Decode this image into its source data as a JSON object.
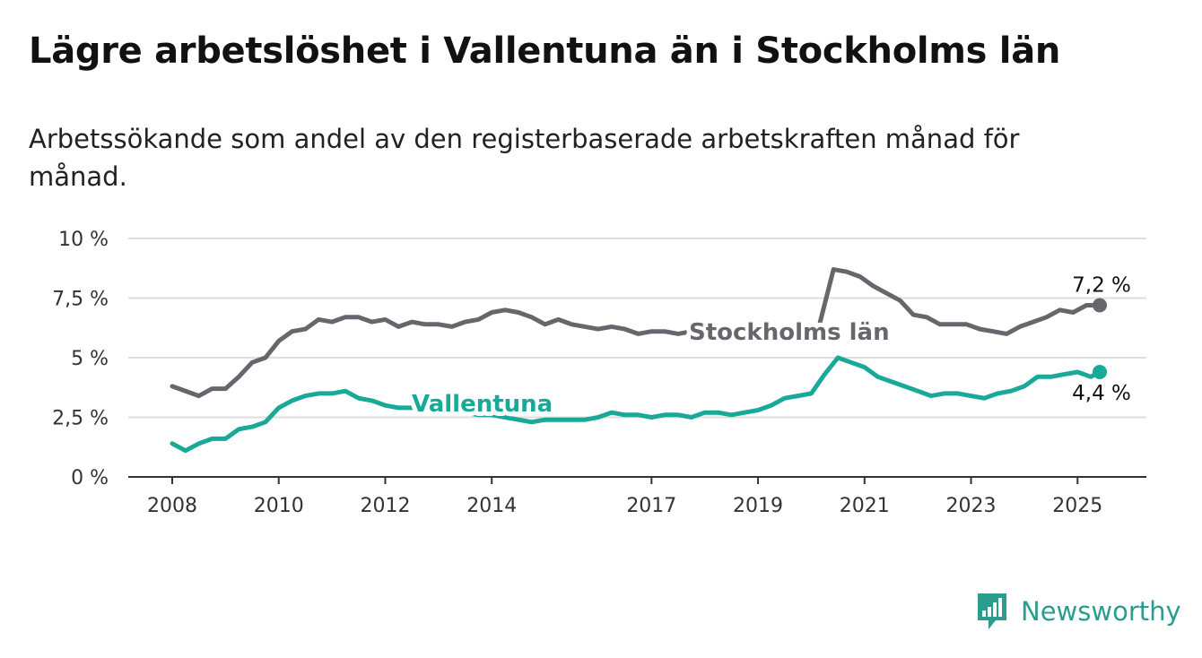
{
  "title": "Lägre arbetslöshet i Vallentuna än i Stockholms län",
  "subtitle": "Arbetssökande som andel av den registerbaserade arbetskraften månad för månad.",
  "brand": {
    "name": "Newsworthy",
    "icon": "bar-chart-logo-icon",
    "color": "#2a9d8f"
  },
  "chart_data": {
    "type": "line",
    "x_start": "2008-01",
    "x_end": "2025-06",
    "y_ticks": [
      {
        "value": 0,
        "label": "0 %"
      },
      {
        "value": 2.5,
        "label": "2,5 %"
      },
      {
        "value": 5,
        "label": "5 %"
      },
      {
        "value": 7.5,
        "label": "7,5 %"
      },
      {
        "value": 10,
        "label": "10 %"
      }
    ],
    "x_ticks": [
      {
        "year": 2008,
        "label": "2008"
      },
      {
        "year": 2010,
        "label": "2010"
      },
      {
        "year": 2012,
        "label": "2012"
      },
      {
        "year": 2014,
        "label": "2014"
      },
      {
        "year": 2017,
        "label": "2017"
      },
      {
        "year": 2019,
        "label": "2019"
      },
      {
        "year": 2021,
        "label": "2021"
      },
      {
        "year": 2023,
        "label": "2023"
      },
      {
        "year": 2025,
        "label": "2025"
      }
    ],
    "ylim": [
      0,
      10
    ],
    "grid": true,
    "series": [
      {
        "name": "Stockholms län",
        "color": "#66676c",
        "end_label": "7,2 %",
        "points": [
          [
            "2008-01",
            3.8
          ],
          [
            "2008-07",
            3.4
          ],
          [
            "2008-10",
            3.7
          ],
          [
            "2009-01",
            3.7
          ],
          [
            "2009-04",
            4.2
          ],
          [
            "2009-07",
            4.8
          ],
          [
            "2009-10",
            5.0
          ],
          [
            "2010-01",
            5.7
          ],
          [
            "2010-04",
            6.1
          ],
          [
            "2010-07",
            6.2
          ],
          [
            "2010-10",
            6.6
          ],
          [
            "2011-01",
            6.5
          ],
          [
            "2011-04",
            6.7
          ],
          [
            "2011-07",
            6.7
          ],
          [
            "2011-10",
            6.5
          ],
          [
            "2012-01",
            6.6
          ],
          [
            "2012-04",
            6.3
          ],
          [
            "2012-07",
            6.5
          ],
          [
            "2012-10",
            6.4
          ],
          [
            "2013-01",
            6.4
          ],
          [
            "2013-04",
            6.3
          ],
          [
            "2013-07",
            6.5
          ],
          [
            "2013-10",
            6.6
          ],
          [
            "2014-01",
            6.9
          ],
          [
            "2014-04",
            7.0
          ],
          [
            "2014-07",
            6.9
          ],
          [
            "2014-10",
            6.7
          ],
          [
            "2015-01",
            6.4
          ],
          [
            "2015-04",
            6.6
          ],
          [
            "2015-07",
            6.4
          ],
          [
            "2015-10",
            6.3
          ],
          [
            "2016-01",
            6.2
          ],
          [
            "2016-04",
            6.3
          ],
          [
            "2016-07",
            6.2
          ],
          [
            "2016-10",
            6.0
          ],
          [
            "2017-01",
            6.1
          ],
          [
            "2017-04",
            6.1
          ],
          [
            "2017-07",
            6.0
          ],
          [
            "2017-10",
            6.1
          ],
          [
            "2017-12",
            6.1
          ],
          [
            "2020-03",
            6.5
          ],
          [
            "2020-06",
            8.7
          ],
          [
            "2020-09",
            8.6
          ],
          [
            "2020-12",
            8.4
          ],
          [
            "2021-03",
            8.0
          ],
          [
            "2021-06",
            7.7
          ],
          [
            "2021-09",
            7.4
          ],
          [
            "2021-12",
            6.8
          ],
          [
            "2022-03",
            6.7
          ],
          [
            "2022-06",
            6.4
          ],
          [
            "2022-09",
            6.4
          ],
          [
            "2022-12",
            6.4
          ],
          [
            "2023-03",
            6.2
          ],
          [
            "2023-06",
            6.1
          ],
          [
            "2023-09",
            6.0
          ],
          [
            "2023-12",
            6.3
          ],
          [
            "2024-03",
            6.5
          ],
          [
            "2024-06",
            6.7
          ],
          [
            "2024-09",
            7.0
          ],
          [
            "2024-12",
            6.9
          ],
          [
            "2025-03",
            7.2
          ],
          [
            "2025-06",
            7.2
          ]
        ]
      },
      {
        "name": "Vallentuna",
        "color": "#1aa898",
        "end_label": "4,4 %",
        "points": [
          [
            "2008-01",
            1.4
          ],
          [
            "2008-04",
            1.1
          ],
          [
            "2008-07",
            1.4
          ],
          [
            "2008-10",
            1.6
          ],
          [
            "2009-01",
            1.6
          ],
          [
            "2009-04",
            2.0
          ],
          [
            "2009-07",
            2.1
          ],
          [
            "2009-10",
            2.3
          ],
          [
            "2010-01",
            2.9
          ],
          [
            "2010-04",
            3.2
          ],
          [
            "2010-07",
            3.4
          ],
          [
            "2010-10",
            3.5
          ],
          [
            "2011-01",
            3.5
          ],
          [
            "2011-04",
            3.6
          ],
          [
            "2011-07",
            3.3
          ],
          [
            "2011-10",
            3.2
          ],
          [
            "2012-01",
            3.0
          ],
          [
            "2012-04",
            2.9
          ],
          [
            "2012-07",
            2.9
          ],
          [
            "2012-10",
            2.8
          ],
          [
            "2013-01",
            2.7
          ],
          [
            "2013-04",
            2.8
          ],
          [
            "2013-07",
            2.7
          ],
          [
            "2013-10",
            2.6
          ],
          [
            "2014-01",
            2.6
          ],
          [
            "2014-04",
            2.5
          ],
          [
            "2014-07",
            2.4
          ],
          [
            "2014-10",
            2.3
          ],
          [
            "2015-01",
            2.4
          ],
          [
            "2015-04",
            2.4
          ],
          [
            "2015-07",
            2.4
          ],
          [
            "2015-10",
            2.4
          ],
          [
            "2016-01",
            2.5
          ],
          [
            "2016-04",
            2.7
          ],
          [
            "2016-07",
            2.6
          ],
          [
            "2016-10",
            2.6
          ],
          [
            "2017-01",
            2.5
          ],
          [
            "2017-04",
            2.6
          ],
          [
            "2017-07",
            2.6
          ],
          [
            "2017-10",
            2.5
          ],
          [
            "2018-01",
            2.7
          ],
          [
            "2018-04",
            2.7
          ],
          [
            "2018-07",
            2.6
          ],
          [
            "2018-10",
            2.7
          ],
          [
            "2019-01",
            2.8
          ],
          [
            "2019-04",
            3.0
          ],
          [
            "2019-07",
            3.3
          ],
          [
            "2019-10",
            3.4
          ],
          [
            "2020-01",
            3.5
          ],
          [
            "2020-04",
            4.3
          ],
          [
            "2020-07",
            5.0
          ],
          [
            "2020-10",
            4.8
          ],
          [
            "2021-01",
            4.6
          ],
          [
            "2021-04",
            4.2
          ],
          [
            "2021-07",
            4.0
          ],
          [
            "2021-10",
            3.8
          ],
          [
            "2022-01",
            3.6
          ],
          [
            "2022-04",
            3.4
          ],
          [
            "2022-07",
            3.5
          ],
          [
            "2022-10",
            3.5
          ],
          [
            "2023-01",
            3.4
          ],
          [
            "2023-04",
            3.3
          ],
          [
            "2023-07",
            3.5
          ],
          [
            "2023-10",
            3.6
          ],
          [
            "2024-01",
            3.8
          ],
          [
            "2024-04",
            4.2
          ],
          [
            "2024-07",
            4.2
          ],
          [
            "2024-10",
            4.3
          ],
          [
            "2025-01",
            4.4
          ],
          [
            "2025-04",
            4.2
          ],
          [
            "2025-06",
            4.4
          ]
        ]
      }
    ]
  }
}
